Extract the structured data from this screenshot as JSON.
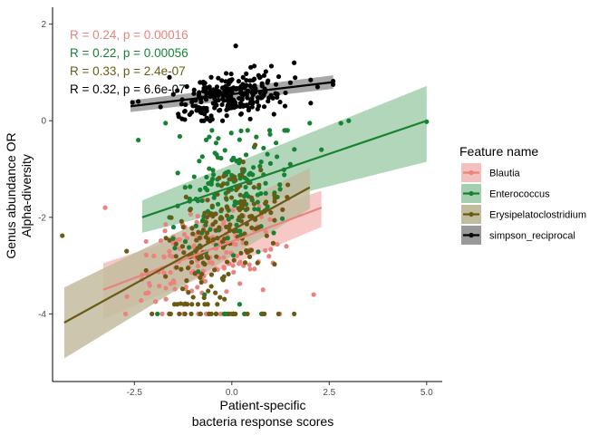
{
  "chart_data": {
    "type": "scatter",
    "xlabel": [
      "Patient-specific",
      "bacteria response scores"
    ],
    "ylabel": [
      "Genus abundance OR",
      "Alpha-diversity"
    ],
    "xlim": [
      -4.6,
      5.4
    ],
    "ylim": [
      -5.4,
      2.35
    ],
    "xticks": [
      -2.5,
      0.0,
      2.5,
      5.0
    ],
    "xtick_labels": [
      "-2.5",
      "0.0",
      "2.5",
      "5.0"
    ],
    "yticks": [
      -4,
      -2,
      0,
      2
    ],
    "ytick_labels": [
      "-4",
      "-2",
      "0",
      "2"
    ],
    "grid": false,
    "legend": {
      "title": "Feature name",
      "placement": "right",
      "entries": [
        "Blautia",
        "Enterococcus",
        "Erysipelatoclostridium",
        "simpson_reciprocal"
      ]
    },
    "series": [
      {
        "name": "Blautia",
        "color": "#E8837E",
        "fill": "#F4C0BD",
        "fit": {
          "x": [
            -3.3,
            2.3
          ],
          "y": [
            -3.5,
            -1.8
          ],
          "ci_lower": [
            -4.1,
            -2.2
          ],
          "ci_upper": [
            -2.95,
            -1.45
          ]
        },
        "cloud": {
          "x_range": [
            -3.2,
            2.1
          ],
          "y_range": [
            -4.0,
            -1.5
          ],
          "n": 150,
          "floor": -4.0
        },
        "points": [
          [
            -3.25,
            -1.8
          ],
          [
            -2.2,
            -2.5
          ],
          [
            -2.0,
            -2.8
          ],
          [
            -1.5,
            -2.4
          ],
          [
            -0.9,
            -2.1
          ],
          [
            -0.6,
            -4.0
          ],
          [
            0.3,
            -3.0
          ],
          [
            0.8,
            -3.5
          ],
          [
            1.4,
            -2.6
          ],
          [
            2.1,
            -3.6
          ]
        ]
      },
      {
        "name": "Enterococcus",
        "color": "#168232",
        "fill": "#A3CFAE",
        "fit": {
          "x": [
            -2.3,
            5.0
          ],
          "y": [
            -2.0,
            0.0
          ],
          "ci_lower": [
            -2.32,
            -0.85
          ],
          "ci_upper": [
            -1.65,
            0.72
          ]
        },
        "cloud": {
          "x_range": [
            -2.2,
            2.2
          ],
          "y_range": [
            -3.6,
            -0.2
          ],
          "n": 170,
          "floor": -4.0
        },
        "points": [
          [
            -2.4,
            -0.4
          ],
          [
            -1.7,
            -0.05
          ],
          [
            -1.6,
            -2.0
          ],
          [
            -0.7,
            -3.6
          ],
          [
            0.2,
            -3.8
          ],
          [
            1.5,
            -0.9
          ],
          [
            2.0,
            -0.05
          ],
          [
            2.3,
            -0.6
          ],
          [
            2.8,
            -0.05
          ],
          [
            3.0,
            0.0
          ],
          [
            5.0,
            -0.02
          ]
        ]
      },
      {
        "name": "Erysipelatoclostridium",
        "color": "#6B5A14",
        "fill": "#C2BC9F",
        "fit": {
          "x": [
            -4.3,
            2.0
          ],
          "y": [
            -4.18,
            -1.38
          ],
          "ci_lower": [
            -4.92,
            -1.82
          ],
          "ci_upper": [
            -3.45,
            -0.98
          ]
        },
        "cloud": {
          "x_range": [
            -2.3,
            1.7
          ],
          "y_range": [
            -3.8,
            -0.2
          ],
          "n": 190,
          "floor": -4.0
        },
        "points": [
          [
            -4.35,
            -2.38
          ],
          [
            -2.7,
            -2.7
          ],
          [
            -2.2,
            -3.1
          ],
          [
            -1.6,
            -4.0
          ],
          [
            -1.2,
            -4.0
          ],
          [
            -0.8,
            -4.0
          ],
          [
            -0.4,
            -4.0
          ],
          [
            0.0,
            -4.0
          ],
          [
            0.4,
            -4.0
          ],
          [
            0.8,
            -4.0
          ],
          [
            1.2,
            -4.0
          ],
          [
            1.6,
            -4.0
          ],
          [
            -2.05,
            -4.0
          ],
          [
            -1.4,
            -3.8
          ]
        ]
      },
      {
        "name": "simpson_reciprocal",
        "color": "#000000",
        "fill": "#999999",
        "fit": {
          "x": [
            -2.6,
            2.6
          ],
          "y": [
            0.3,
            0.8
          ],
          "ci_lower": [
            0.18,
            0.66
          ],
          "ci_upper": [
            0.42,
            0.94
          ]
        },
        "cloud": {
          "x_range": [
            -2.2,
            2.1
          ],
          "y_range": [
            0.0,
            1.3
          ],
          "n": 240,
          "floor": null
        },
        "points": [
          [
            -2.55,
            0.38
          ],
          [
            -2.4,
            0.4
          ],
          [
            -1.6,
            0.9
          ],
          [
            -1.2,
            0.2
          ],
          [
            0.1,
            1.55
          ],
          [
            1.6,
            1.2
          ],
          [
            2.2,
            0.7
          ],
          [
            2.6,
            0.75
          ],
          [
            2.6,
            0.82
          ]
        ]
      }
    ],
    "annotations": [
      {
        "text": "R = 0.24, p = 0.00016",
        "color": "#E8837E"
      },
      {
        "text": "R = 0.22, p = 0.00056",
        "color": "#168232"
      },
      {
        "text": "R = 0.33, p = 2.4e-07",
        "color": "#6B5A14"
      },
      {
        "text": "R = 0.32, p = 6.6e-07",
        "color": "#000000"
      }
    ]
  }
}
